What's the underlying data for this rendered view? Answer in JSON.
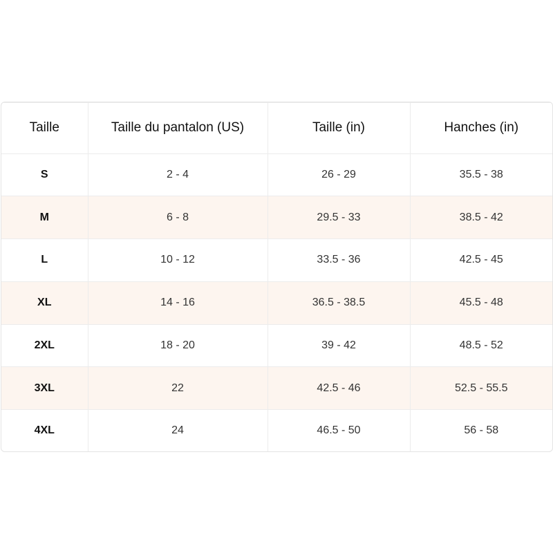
{
  "table": {
    "header": [
      "Taille",
      "Taille du pantalon (US)",
      "Taille (in)",
      "Hanches (in)"
    ],
    "rows": [
      [
        "S",
        "2 - 4",
        "26 - 29",
        "35.5 - 38"
      ],
      [
        "M",
        "6 - 8",
        "29.5 - 33",
        "38.5 - 42"
      ],
      [
        "L",
        "10 - 12",
        "33.5 - 36",
        "42.5 - 45"
      ],
      [
        "XL",
        "14 - 16",
        "36.5 - 38.5",
        "45.5 - 48"
      ],
      [
        "2XL",
        "18 - 20",
        "39 - 42",
        "48.5 - 52"
      ],
      [
        "3XL",
        "22",
        "42.5 - 46",
        "52.5 - 55.5"
      ],
      [
        "4XL",
        "24",
        "46.5 - 50",
        "56 - 58"
      ]
    ]
  }
}
